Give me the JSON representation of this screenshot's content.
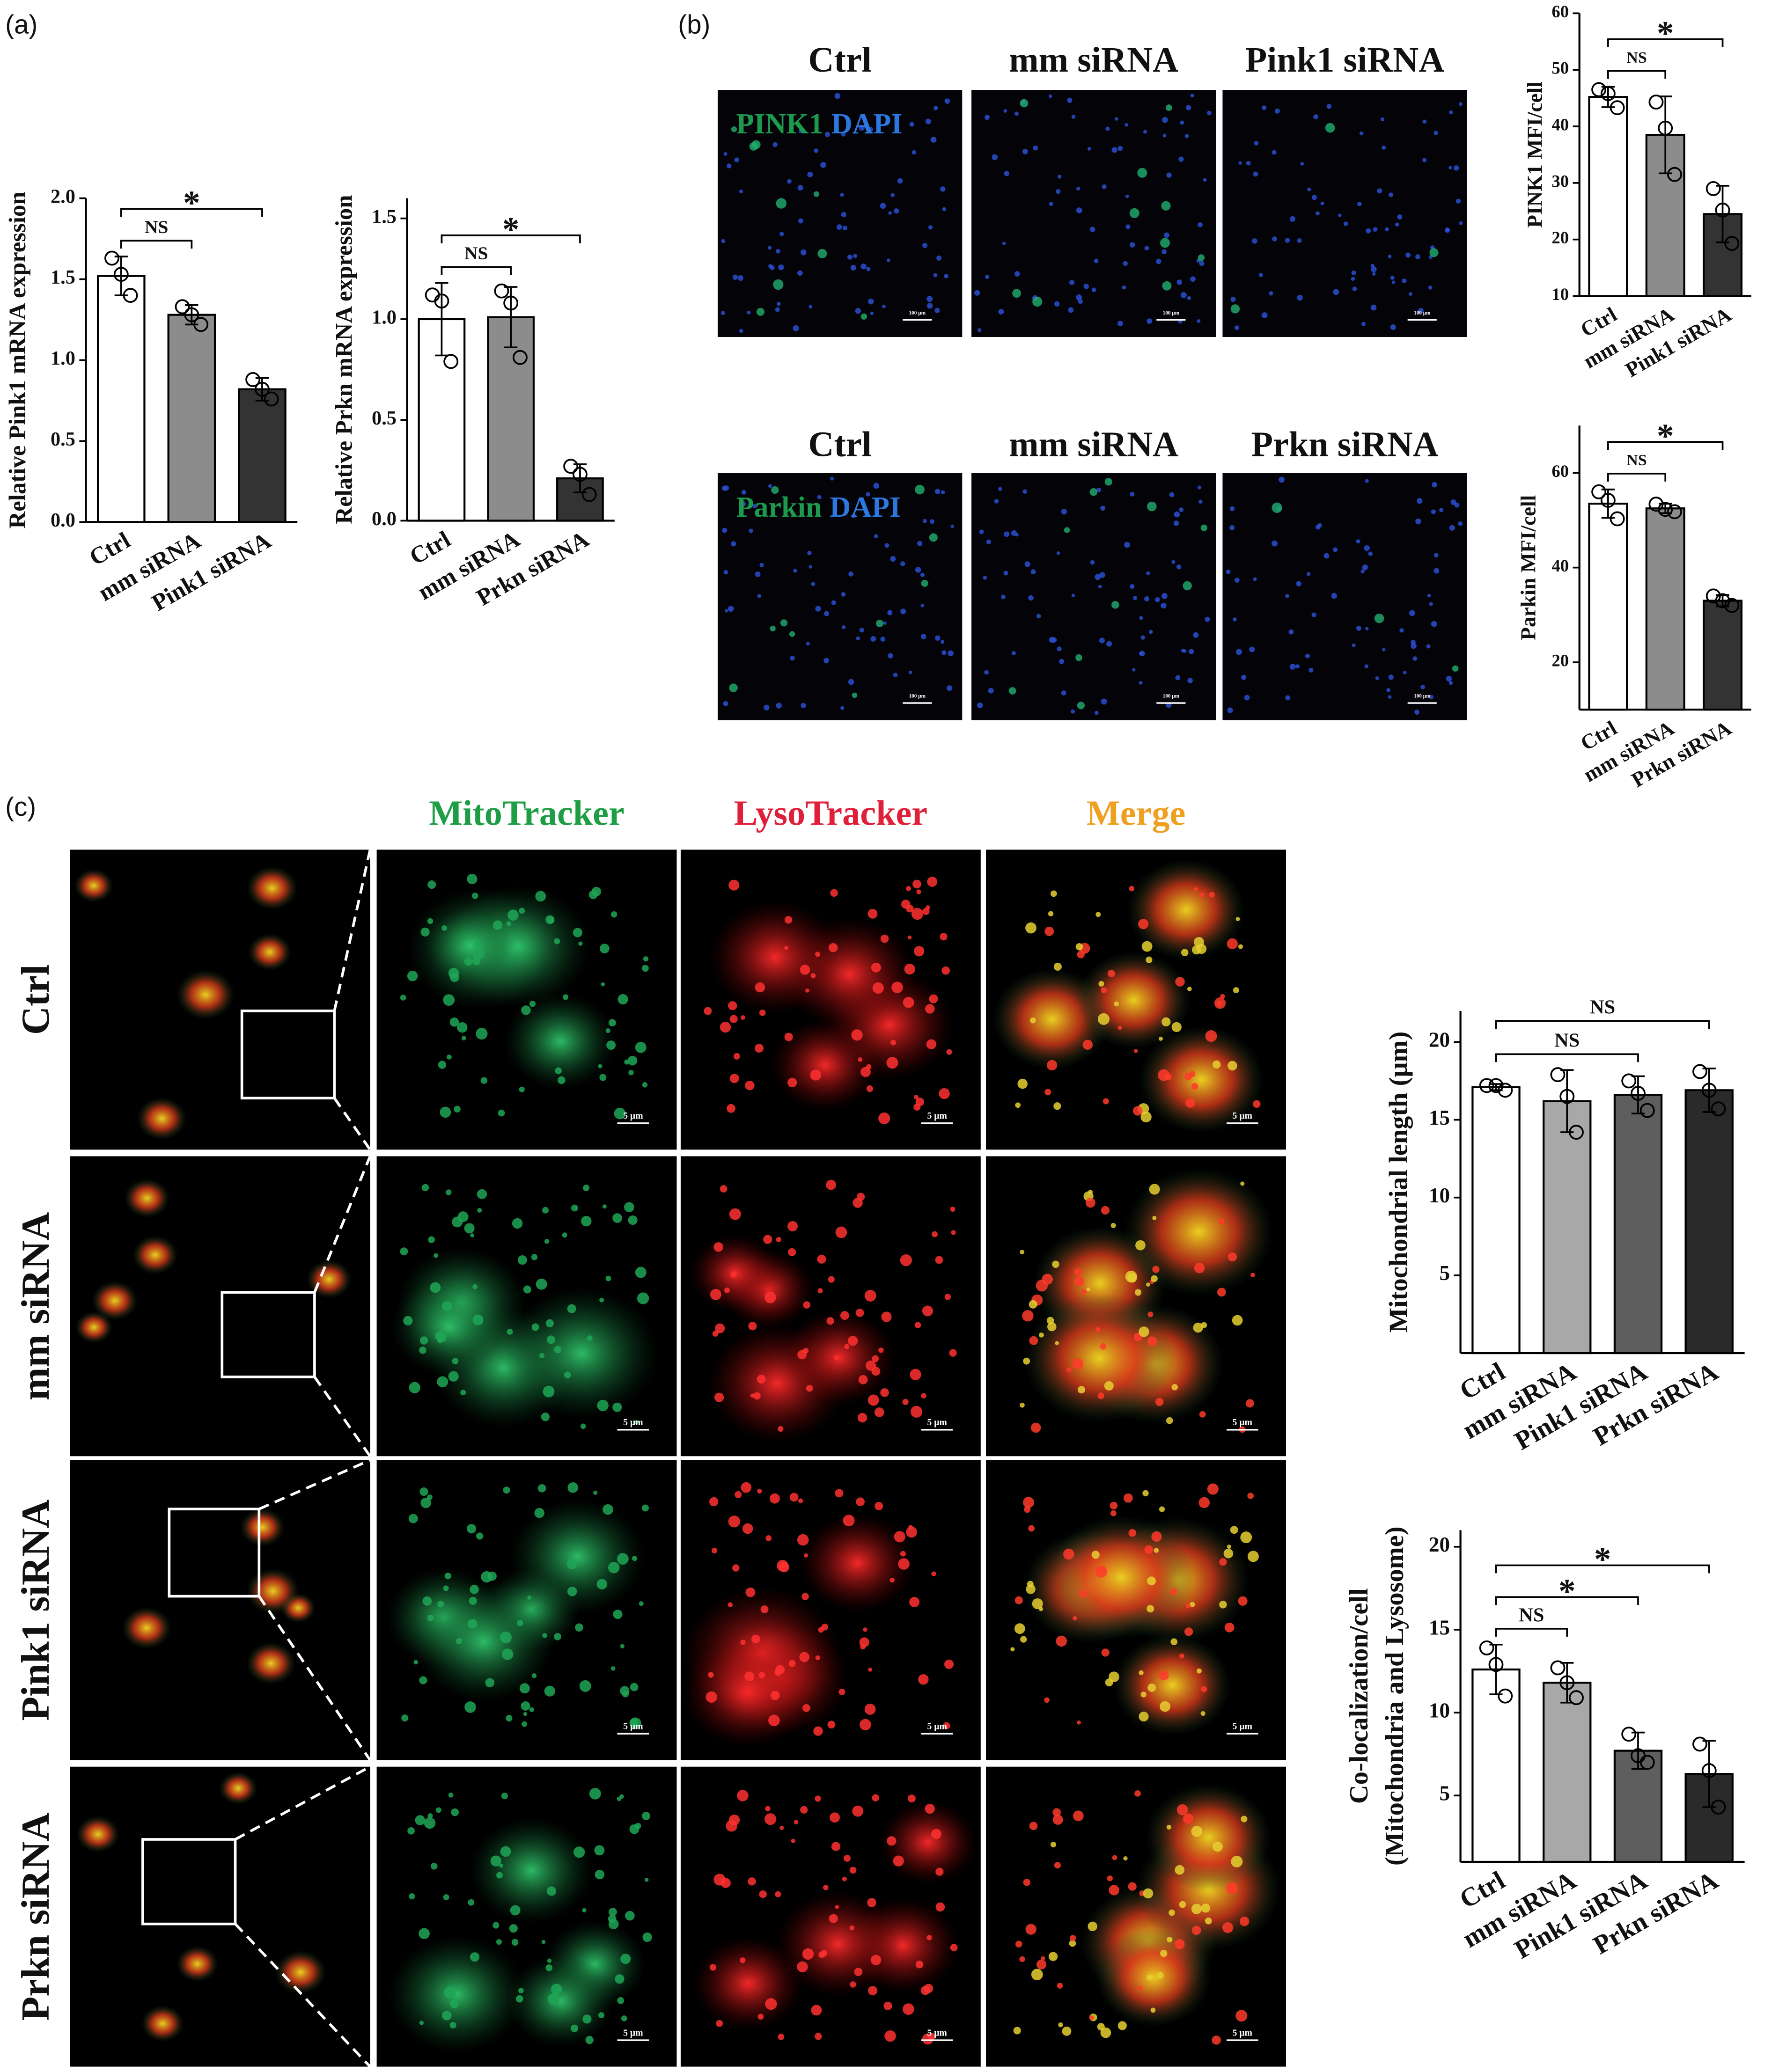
{
  "panel_labels": [
    "(a)",
    "(b)",
    "(c)"
  ],
  "chart_data": [
    {
      "type": "bar",
      "ylabel": "Relative Pink1 mRNA expression",
      "categories": [
        "Ctrl",
        "mm siRNA",
        "Pink1 siRNA"
      ],
      "values": [
        1.52,
        1.28,
        0.82
      ],
      "errors": [
        0.12,
        0.06,
        0.07
      ],
      "points": [
        [
          1.63,
          1.4,
          1.53
        ],
        [
          1.33,
          1.22,
          1.28
        ],
        [
          0.88,
          0.76,
          0.82
        ]
      ],
      "colors": [
        "#ffffff",
        "#8c8c8c",
        "#333333"
      ],
      "ylim": [
        0,
        2.0
      ],
      "yticks": [
        {
          "value": 0,
          "label": "0.0"
        },
        0.5,
        {
          "value": 1,
          "label": "1.0"
        },
        1.5,
        {
          "value": 2,
          "label": "2.0"
        }
      ],
      "significance": [
        {
          "pair": [
            "Ctrl",
            "mm siRNA"
          ],
          "label": "NS"
        },
        {
          "pair": [
            "Ctrl",
            "Pink1 siRNA"
          ],
          "label": "*"
        }
      ]
    },
    {
      "type": "bar",
      "ylabel": "Relative Prkn mRNA expression",
      "categories": [
        "Ctrl",
        "mm siRNA",
        "Prkn siRNA"
      ],
      "values": [
        1.0,
        1.01,
        0.21
      ],
      "errors": [
        0.18,
        0.15,
        0.07
      ],
      "points": [
        [
          1.12,
          0.79,
          1.09
        ],
        [
          1.14,
          0.81,
          1.08
        ],
        [
          0.27,
          0.13,
          0.23
        ]
      ],
      "colors": [
        "#ffffff",
        "#8c8c8c",
        "#333333"
      ],
      "ylim": [
        0,
        1.6
      ],
      "yticks": [
        {
          "value": 0,
          "label": "0.0"
        },
        0.5,
        {
          "value": 1,
          "label": "1.0"
        },
        1.5
      ],
      "significance": [
        {
          "pair": [
            "Ctrl",
            "mm siRNA"
          ],
          "label": "NS"
        },
        {
          "pair": [
            "Ctrl",
            "Prkn siRNA"
          ],
          "label": "*"
        }
      ]
    },
    {
      "type": "bar",
      "ylabel": "PINK1 MFI/cell",
      "categories": [
        "Ctrl",
        "mm siRNA",
        "Pink1 siRNA"
      ],
      "values": [
        45.2,
        38.5,
        24.5
      ],
      "errors": [
        1.8,
        6.8,
        5
      ],
      "points": [
        [
          46.5,
          43.3,
          45.8
        ],
        [
          44.3,
          31.5,
          39.7
        ],
        [
          29,
          19.3,
          25.2
        ]
      ],
      "colors": [
        "#ffffff",
        "#8c8c8c",
        "#333333"
      ],
      "ylim": [
        10,
        60
      ],
      "yticks": [
        10,
        20,
        30,
        40,
        50,
        60
      ],
      "significance": [
        {
          "pair": [
            "Ctrl",
            "mm siRNA"
          ],
          "label": "NS"
        },
        {
          "pair": [
            "Ctrl",
            "Pink1 siRNA"
          ],
          "label": "*"
        }
      ]
    },
    {
      "type": "bar",
      "ylabel": "Parkin MFI/cell",
      "categories": [
        "Ctrl",
        "mm siRNA",
        "Prkn siRNA"
      ],
      "values": [
        53.5,
        52.5,
        33
      ],
      "errors": [
        3,
        1,
        1.2
      ],
      "points": [
        [
          56,
          50.3,
          54.2
        ],
        [
          53.4,
          51.8,
          52.3
        ],
        [
          34,
          32,
          33
        ]
      ],
      "colors": [
        "#ffffff",
        "#8c8c8c",
        "#333333"
      ],
      "ylim": [
        10,
        70
      ],
      "yticks": [
        20,
        40,
        60
      ],
      "significance": [
        {
          "pair": [
            "Ctrl",
            "mm siRNA"
          ],
          "label": "NS"
        },
        {
          "pair": [
            "Ctrl",
            "Prkn siRNA"
          ],
          "label": "*"
        }
      ]
    },
    {
      "type": "bar",
      "ylabel": "Mitochondrial length (μm)",
      "categories": [
        "Ctrl",
        "mm siRNA",
        "Pink1 siRNA",
        "Prkn siRNA"
      ],
      "values": [
        17.1,
        16.2,
        16.6,
        16.9
      ],
      "errors": [
        0.2,
        2,
        1.2,
        1.4
      ],
      "points": [
        [
          17.2,
          16.9,
          17.2
        ],
        [
          17.9,
          14.2,
          16.5
        ],
        [
          17.5,
          15.6,
          16.7
        ],
        [
          18.1,
          15.7,
          16.9
        ]
      ],
      "colors": [
        "#ffffff",
        "#a8a8a8",
        "#5e5e5e",
        "#2a2a2a"
      ],
      "ylim": [
        0,
        22
      ],
      "yticks": [
        5,
        10,
        15,
        20
      ],
      "significance": [
        {
          "pair": [
            "Ctrl",
            "Pink1 siRNA"
          ],
          "label": "NS"
        },
        {
          "pair": [
            "Ctrl",
            "Prkn siRNA"
          ],
          "label": "NS"
        }
      ]
    },
    {
      "type": "bar",
      "ylabel": [
        "Co-localization/cell",
        "(Mitochondria and Lysosome)"
      ],
      "categories": [
        "Ctrl",
        "mm siRNA",
        "Pink1 siRNA",
        "Prkn siRNA"
      ],
      "values": [
        12.6,
        11.8,
        7.7,
        6.3
      ],
      "errors": [
        1.5,
        1.2,
        1.1,
        2
      ],
      "points": [
        [
          13.9,
          11.0,
          12.9
        ],
        [
          12.7,
          10.9,
          11.8
        ],
        [
          8.7,
          7.0,
          7.4
        ],
        [
          8.1,
          4.3,
          6.5
        ]
      ],
      "colors": [
        "#ffffff",
        "#a8a8a8",
        "#5e5e5e",
        "#2a2a2a"
      ],
      "ylim": [
        1,
        21
      ],
      "yticks": [
        5,
        10,
        15,
        20
      ],
      "significance": [
        {
          "pair": [
            "Ctrl",
            "mm siRNA"
          ],
          "label": "NS"
        },
        {
          "pair": [
            "Ctrl",
            "Pink1 siRNA"
          ],
          "label": "*"
        },
        {
          "pair": [
            "Ctrl",
            "Prkn siRNA"
          ],
          "label": "*"
        }
      ]
    }
  ],
  "panel_b": {
    "rows": [
      {
        "headers": [
          "Ctrl",
          "mm siRNA",
          "Pink1 siRNA"
        ],
        "stain": [
          "PINK1",
          "DAPI"
        ]
      },
      {
        "headers": [
          "Ctrl",
          "mm siRNA",
          "Prkn siRNA"
        ],
        "stain": [
          "Parkin",
          "DAPI"
        ]
      }
    ],
    "scale_bar": "100 μm"
  },
  "panel_c": {
    "columns": [
      "MitoTracker",
      "LysoTracker",
      "Merge"
    ],
    "rows": [
      "Ctrl",
      "mm siRNA",
      "Pink1 siRNA",
      "Prkn siRNA"
    ],
    "scale_bar": "5 μm"
  }
}
